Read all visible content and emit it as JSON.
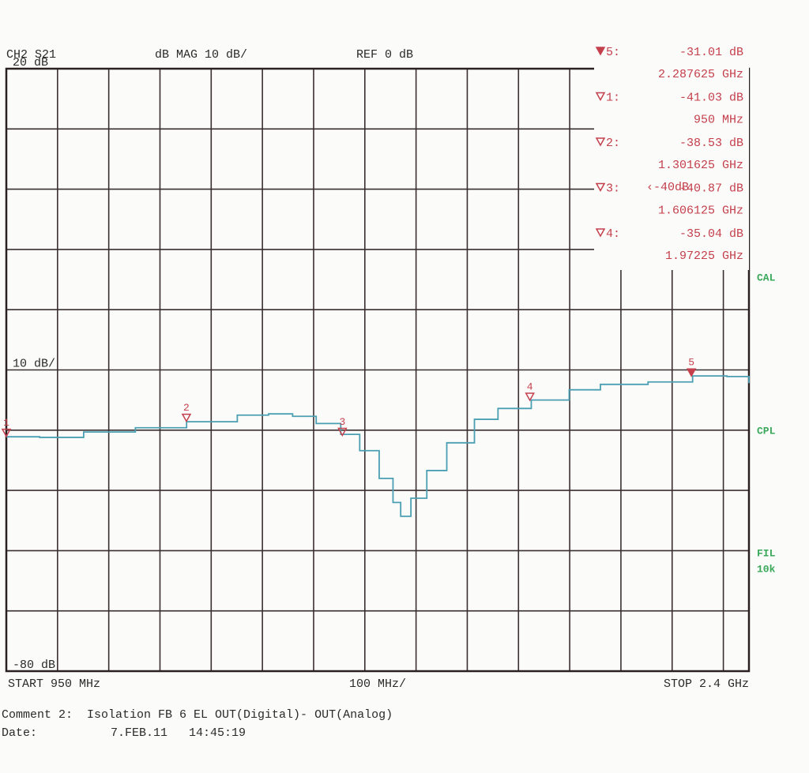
{
  "chart_data": {
    "type": "line",
    "channel": "CH2 S21",
    "format": "dB MAG 10 dB/",
    "reference": "REF 0 dB",
    "start_label": "START 950 MHz",
    "span_label": "100 MHz/",
    "stop_label": "STOP 2.4 GHz",
    "y_labels": [
      {
        "value": 20,
        "label": "20 dB"
      },
      {
        "value": -30,
        "label": "10 dB/"
      },
      {
        "value": -80,
        "label": "-80 dB"
      }
    ],
    "status": [
      "CAL",
      "CPL",
      "FIL",
      "10k"
    ],
    "xlim": [
      950,
      2400
    ],
    "ylim": [
      -80,
      20
    ],
    "xticks": [
      950,
      1050,
      1150,
      1250,
      1350,
      1450,
      1550,
      1650,
      1750,
      1850,
      1950,
      2050,
      2150,
      2250,
      2350,
      2400
    ],
    "yticks": [
      -80,
      -70,
      -60,
      -50,
      -40,
      -30,
      -20,
      -10,
      0,
      10,
      20
    ],
    "grid": true,
    "series": [
      {
        "name": "S21",
        "color": "#4b9fb2",
        "x": [
          950,
          1015,
          1101,
          1202,
          1302,
          1401,
          1462,
          1509,
          1555,
          1603,
          1640,
          1678,
          1705,
          1720,
          1740,
          1771,
          1810,
          1864,
          1910,
          1975,
          2049,
          2110,
          2203,
          2290,
          2357,
          2400
        ],
        "values": [
          -41.1,
          -41.2,
          -40.3,
          -39.6,
          -38.6,
          -37.5,
          -37.3,
          -37.7,
          -38.9,
          -40.7,
          -43.4,
          -48.0,
          -52.0,
          -54.3,
          -51.3,
          -46.7,
          -42.1,
          -38.2,
          -36.4,
          -35.0,
          -33.3,
          -32.4,
          -32.0,
          -31.0,
          -31.1,
          -32.2
        ]
      }
    ],
    "markers": {
      "color": "#c4404c",
      "numbers": [
        "5:",
        "1:",
        "2:",
        "3:",
        "4:"
      ],
      "x": [
        2287.625,
        950,
        1301.625,
        1606.125,
        1972.25
      ],
      "values": [
        -31.01,
        -41.03,
        -38.53,
        -40.87,
        -35.04
      ],
      "value_labels": [
        "-31.01 dB",
        "-41.03 dB",
        "-38.53 dB",
        "-40.87 dB",
        "-35.04 dB"
      ],
      "x_labels": [
        "2.287625 GHz",
        "950 MHz",
        "1.301625 GHz",
        "1.606125 GHz",
        "1.97225 GHz"
      ],
      "trace_labels": [
        "5",
        "1",
        "2",
        "3",
        "4"
      ]
    },
    "limit_label": "‹-40dB",
    "comment": "Comment 2:  Isolation FB 6 EL OUT(Digital)- OUT(Analog)",
    "date_label": "Date:",
    "date": "7.FEB.11   14:45:19"
  }
}
